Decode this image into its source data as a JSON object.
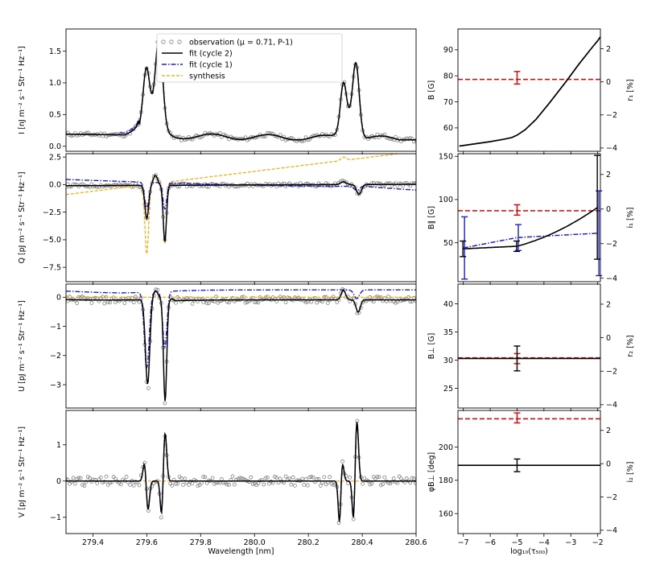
{
  "colors": {
    "obs": "#808080",
    "cycle2": "#000000",
    "cycle1": "#1f1fcc",
    "synthesis": "#ffa500",
    "red": "#e00000"
  },
  "chart_data": [
    {
      "type": "line",
      "id": "I",
      "ylabel": "I  [nJ m⁻² s⁻¹ Str⁻¹ Hz⁻¹]",
      "xlim": [
        279.3,
        280.6
      ],
      "ylim": [
        -0.08,
        1.85
      ],
      "yticks": [
        0.0,
        0.5,
        1.0,
        1.5
      ],
      "ytick_labels": [
        "0.0",
        "0.5",
        "1.0",
        "1.5"
      ],
      "legend": {
        "position": "top-center",
        "entries": [
          "observation (μ = 0.71, P-1)",
          "fit (cycle 2)",
          "fit (cycle 1)",
          "synthesis"
        ]
      }
    },
    {
      "type": "line",
      "id": "Q",
      "ylabel": "Q  [pJ m⁻² s⁻¹ Str⁻¹ Hz⁻¹]",
      "xlim": [
        279.3,
        280.6
      ],
      "ylim": [
        -8.8,
        2.8
      ],
      "yticks": [
        2.5,
        0.0,
        -2.5,
        -5.0,
        -7.5
      ],
      "ytick_labels": [
        "2.5",
        "0.0",
        "−2.5",
        "−5.0",
        "−7.5"
      ]
    },
    {
      "type": "line",
      "id": "U",
      "ylabel": "U  [pJ m⁻² s⁻¹ Str⁻¹ Hz⁻¹]",
      "xlim": [
        279.3,
        280.6
      ],
      "ylim": [
        -3.8,
        0.45
      ],
      "yticks": [
        0,
        -1,
        -2,
        -3
      ],
      "ytick_labels": [
        "0",
        "−1",
        "−2",
        "−3"
      ]
    },
    {
      "type": "line",
      "id": "V",
      "ylabel": "V  [pJ m⁻² s⁻¹ Str⁻¹ Hz⁻¹]",
      "xlim": [
        279.3,
        280.6
      ],
      "ylim": [
        -1.45,
        1.95
      ],
      "yticks": [
        1,
        0,
        -1
      ],
      "ytick_labels": [
        "1",
        "0",
        "−1"
      ],
      "xlabel": "Wavelength [nm]",
      "xticks": [
        279.4,
        279.6,
        279.8,
        280.0,
        280.2,
        280.4,
        280.6
      ],
      "xtick_labels": [
        "279.4",
        "279.6",
        "279.8",
        "280.0",
        "280.2",
        "280.4",
        "280.6"
      ]
    },
    {
      "type": "line",
      "id": "B",
      "ylabel": "B [G]",
      "ylabel2": "r₁ [%]",
      "xlim": [
        -7.2,
        -1.9
      ],
      "ylim": [
        51,
        98
      ],
      "ylim2": [
        -4.2,
        3.2
      ],
      "yticks": [
        60,
        70,
        80,
        90
      ],
      "ytick_labels": [
        "60",
        "70",
        "80",
        "90"
      ],
      "yticks2": [
        2,
        0,
        -2,
        -4
      ],
      "ytick_labels2": [
        "2",
        "0",
        "−2",
        "−4"
      ],
      "x": [
        -7.15,
        -6,
        -5.5,
        -5.2,
        -5,
        -4.7,
        -4.3,
        -3.8,
        -3.2,
        -2.7,
        -2.2,
        -2.0,
        -1.9
      ],
      "y": [
        53,
        54.7,
        55.6,
        56.3,
        57.2,
        59.3,
        63.2,
        69.5,
        77.5,
        84.5,
        91,
        93.5,
        95
      ],
      "ref_line2": 0.15,
      "errorbar2": {
        "x": -5.0,
        "y": 0.25,
        "err": 0.38
      }
    },
    {
      "type": "line",
      "id": "Bpar",
      "ylabel": "B∥ [G]",
      "ylabel2": "i₁ [%]",
      "xlim": [
        -7.2,
        -1.9
      ],
      "ylim": [
        5,
        153
      ],
      "ylim2": [
        -4.2,
        3.2
      ],
      "yticks": [
        50,
        100,
        150
      ],
      "ytick_labels": [
        "50",
        "100",
        "150"
      ],
      "yticks2": [
        2,
        0,
        -2,
        -4
      ],
      "ytick_labels2": [
        "2",
        "0",
        "−2",
        "−4"
      ],
      "series": [
        {
          "name": "cycle 2",
          "x": [
            -7.0,
            -5.0,
            -2.0
          ],
          "y": [
            43,
            46,
            91
          ],
          "err": [
            9,
            6,
            60
          ]
        },
        {
          "name": "cycle 1",
          "x": [
            -7.0,
            -5.0,
            -2.0
          ],
          "y": [
            44,
            56,
            61
          ],
          "err": [
            36,
            15,
            49
          ]
        }
      ],
      "ref_line2": -0.1,
      "errorbar2": {
        "x": -5.0,
        "y": -0.05,
        "err": 0.3
      }
    },
    {
      "type": "line",
      "id": "Bperp",
      "ylabel": "B⊥ [G]",
      "ylabel2": "r₂ [%]",
      "xlim": [
        -7.2,
        -1.9
      ],
      "ylim": [
        21.5,
        43.5
      ],
      "ylim2": [
        -4.2,
        3.2
      ],
      "yticks": [
        25,
        30,
        35,
        40
      ],
      "ytick_labels": [
        "25",
        "30",
        "35",
        "40"
      ],
      "yticks2": [
        2,
        0,
        -2,
        -4
      ],
      "ytick_labels2": [
        "2",
        "0",
        "−2",
        "−4"
      ],
      "line_value": 30.3,
      "errorbar": {
        "x": -5.0,
        "y": 30.3,
        "err": 2.2
      },
      "ref_line2": -1.2,
      "errorbar2": {
        "x": -5.0,
        "y": -1.25,
        "err": 0.3
      }
    },
    {
      "type": "line",
      "id": "phi",
      "ylabel": "φB⊥ [deg]",
      "ylabel2": "i₂ [%]",
      "xlim": [
        -7.2,
        -1.9
      ],
      "ylim": [
        148,
        222
      ],
      "ylim2": [
        -4.2,
        3.2
      ],
      "yticks": [
        160,
        180,
        200
      ],
      "ytick_labels": [
        "160",
        "180",
        "200"
      ],
      "yticks2": [
        2,
        0,
        -2,
        -4
      ],
      "ytick_labels2": [
        "2",
        "0",
        "−2",
        "−4"
      ],
      "xlabel": "log₁₀(τ₅₀₀)",
      "xticks": [
        -7,
        -6,
        -5,
        -4,
        -3,
        -2
      ],
      "xtick_labels": [
        "−7",
        "−6",
        "−5",
        "−4",
        "−3",
        "−2"
      ],
      "line_value": 189,
      "errorbar": {
        "x": -5.0,
        "y": 189,
        "err": 3.8
      },
      "ref_line2": 2.7,
      "errorbar2": {
        "x": -5.0,
        "y": 2.75,
        "err": 0.3
      }
    }
  ]
}
